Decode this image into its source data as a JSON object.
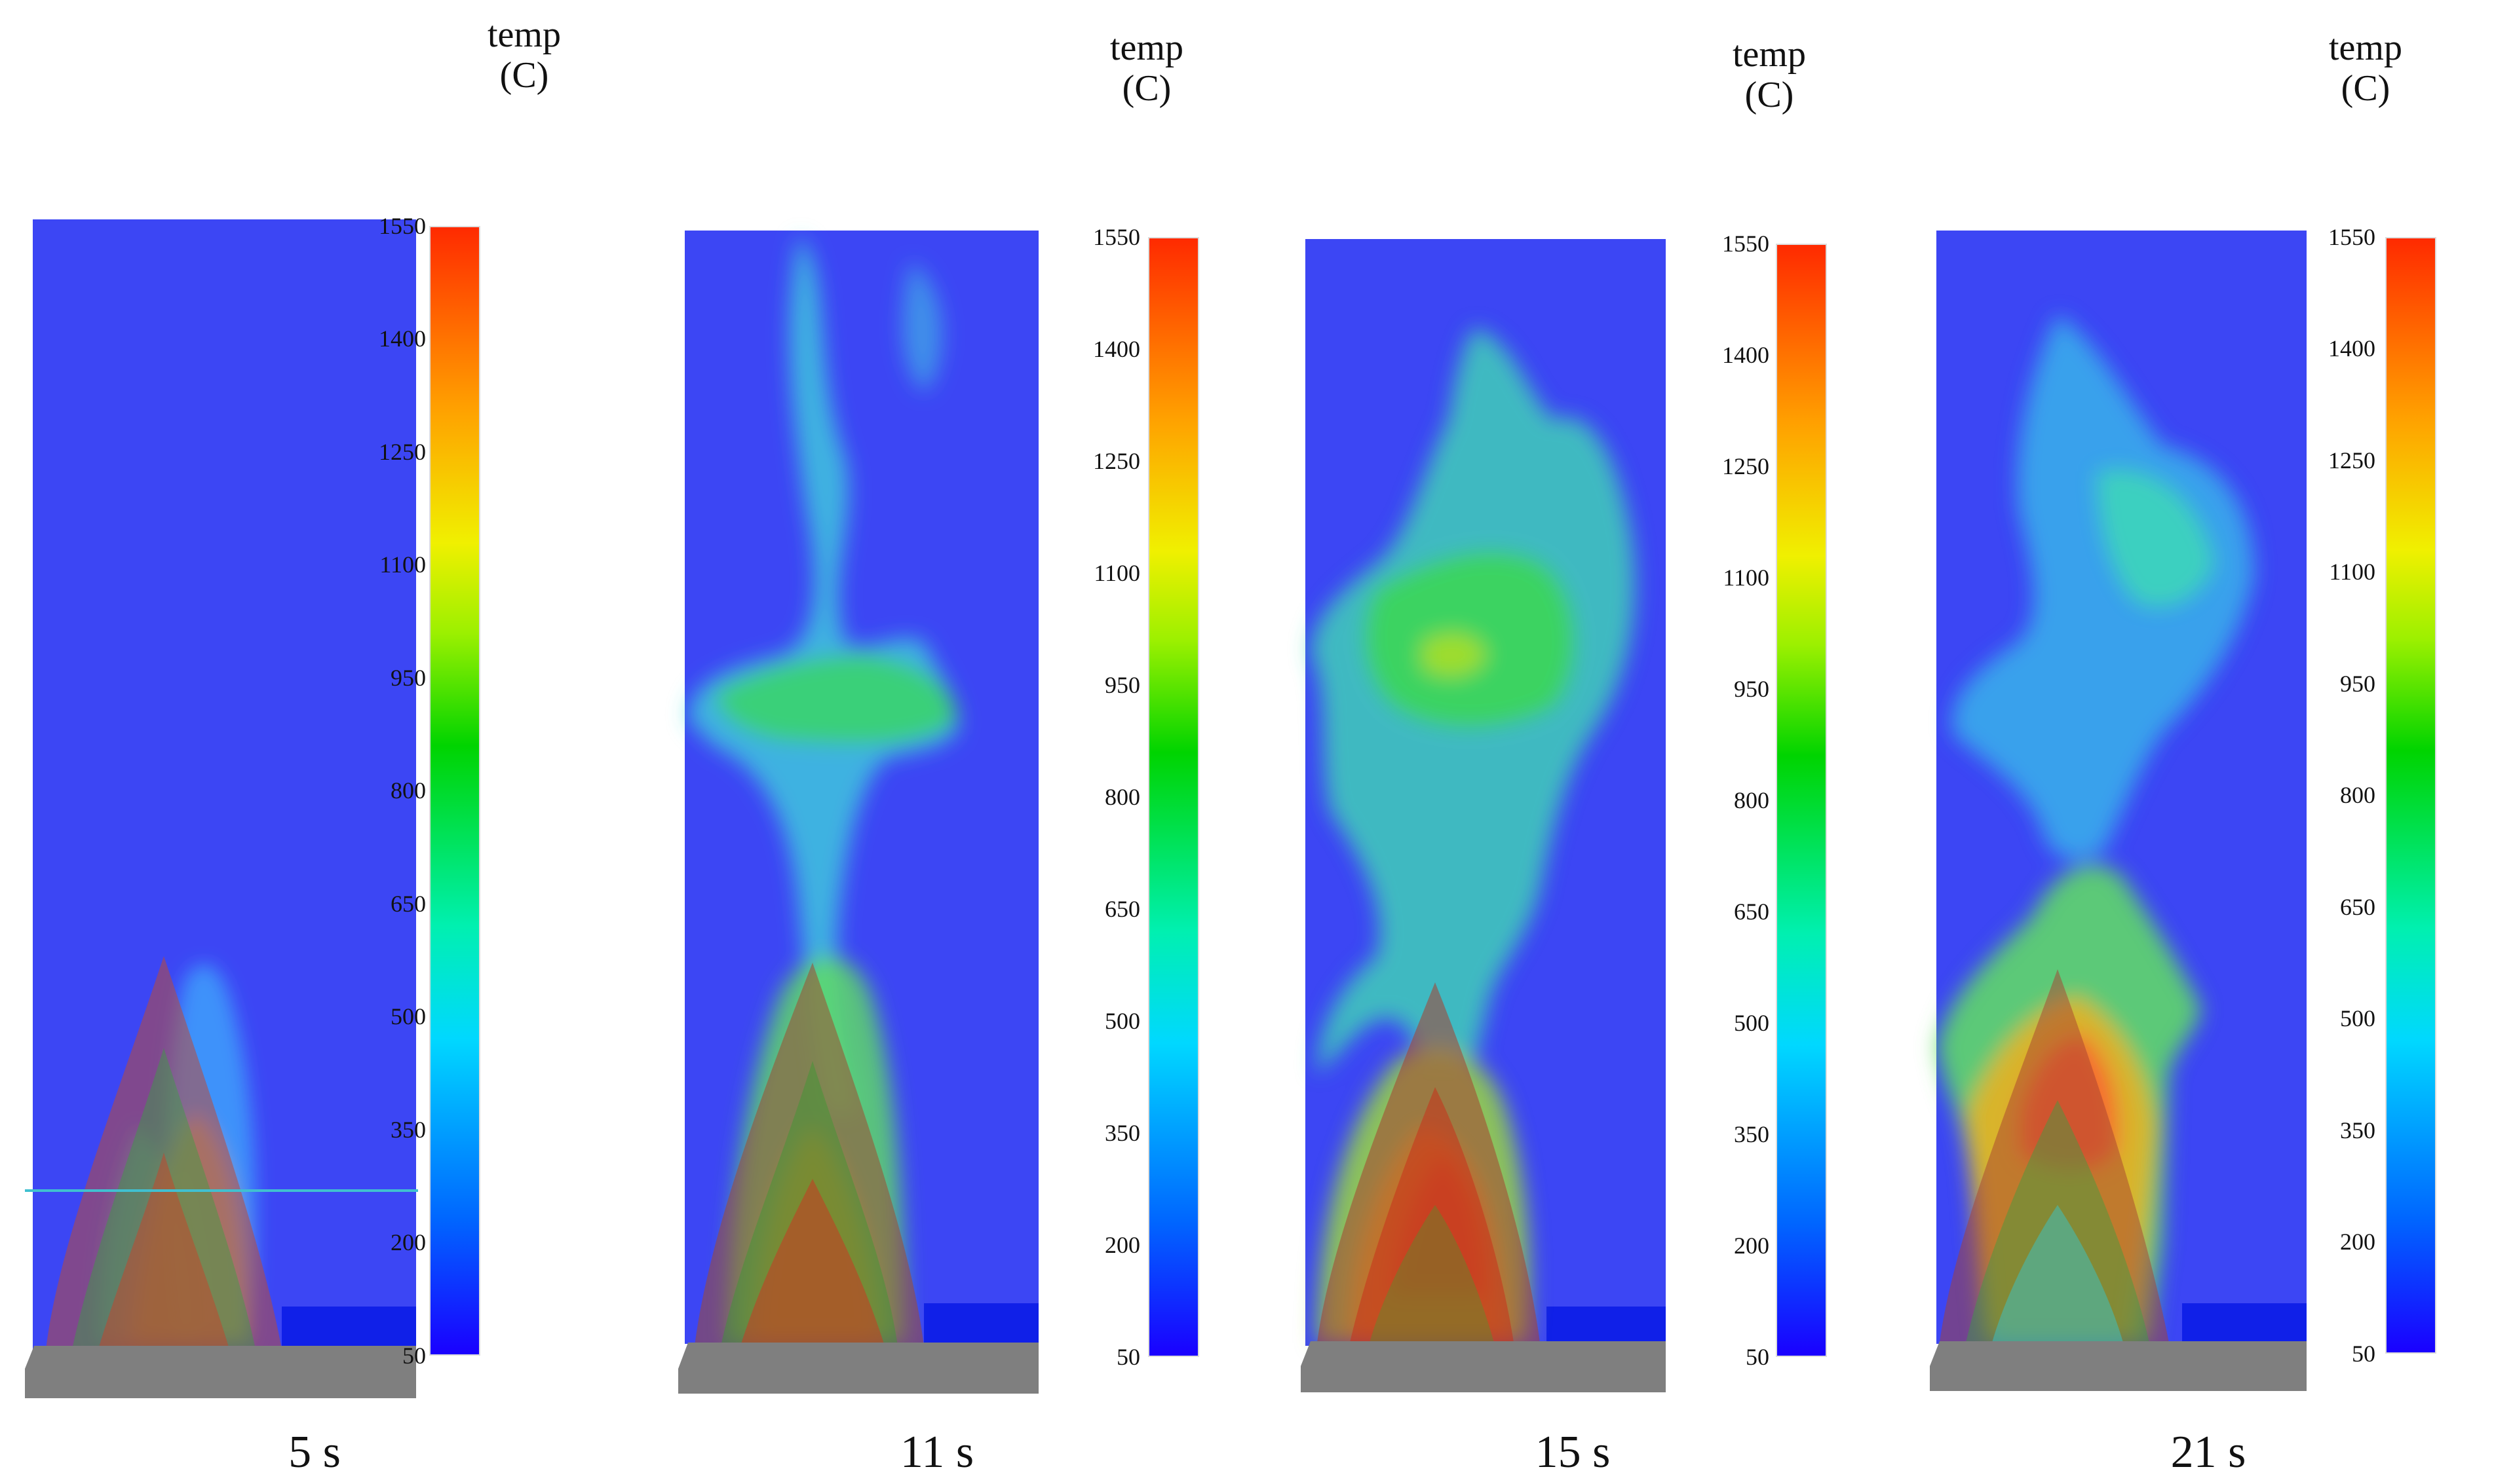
{
  "legend": {
    "title_line1": "temp",
    "title_line2": "(C)",
    "ticks": [
      "1550",
      "1400",
      "1250",
      "1100",
      "950",
      "800",
      "650",
      "500",
      "350",
      "200",
      "50"
    ]
  },
  "panels": [
    {
      "time_label": "5 s"
    },
    {
      "time_label": "11 s"
    },
    {
      "time_label": "15 s"
    },
    {
      "time_label": "21 s"
    }
  ],
  "colors": {
    "background_blue": "#3c46f4",
    "floor_gray": "#7f7f7f",
    "cbar_max": "#ff2a00",
    "cbar_min": "#1a00ff"
  }
}
